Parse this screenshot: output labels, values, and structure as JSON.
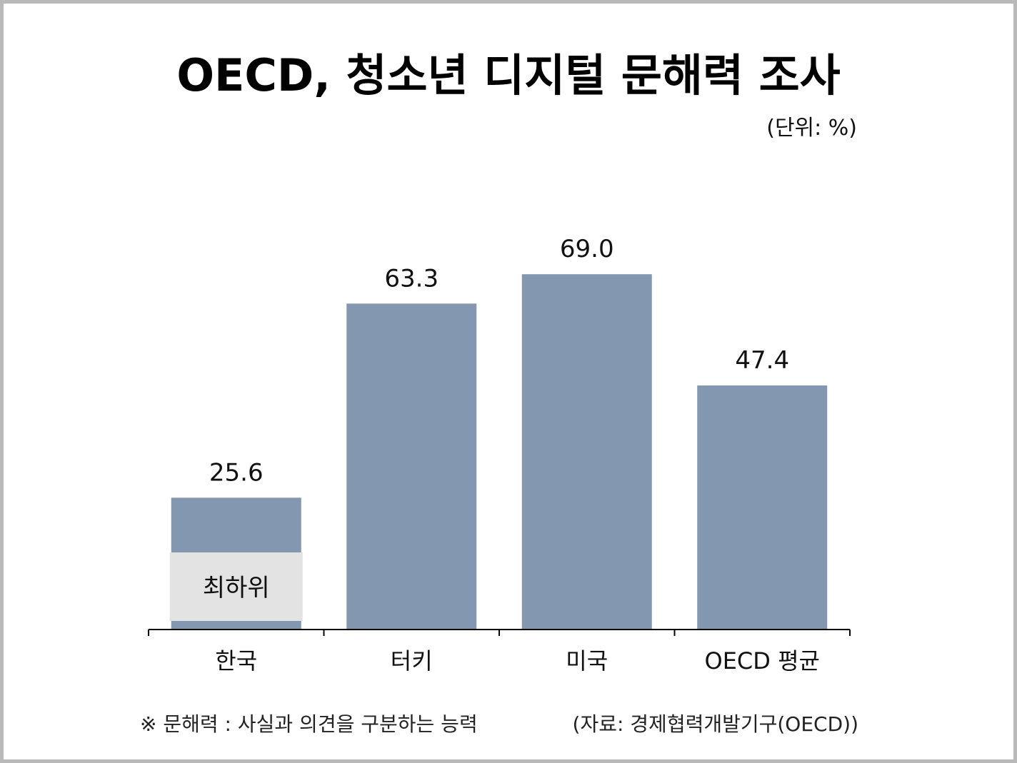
{
  "chart_data": {
    "type": "bar",
    "title": "OECD, 청소년 디지털 문해력 조사",
    "unit": "(단위: %)",
    "categories": [
      "한국",
      "터키",
      "미국",
      "OECD 평균"
    ],
    "values": [
      25.6,
      63.3,
      69.0,
      47.4
    ],
    "value_labels": [
      "25.6",
      "63.3",
      "69.0",
      "47.4"
    ],
    "ylim": [
      0,
      70
    ],
    "grid": false,
    "annotation": {
      "category": "한국",
      "text": "최하위"
    },
    "colors": {
      "bar": "#8497b0",
      "annotation_box": "#e3e3e3",
      "axis": "#000000"
    }
  },
  "footer": {
    "note": "※ 문해력 : 사실과 의견을 구분하는 능력",
    "source": "(자료: 경제협력개발기구(OECD))"
  }
}
